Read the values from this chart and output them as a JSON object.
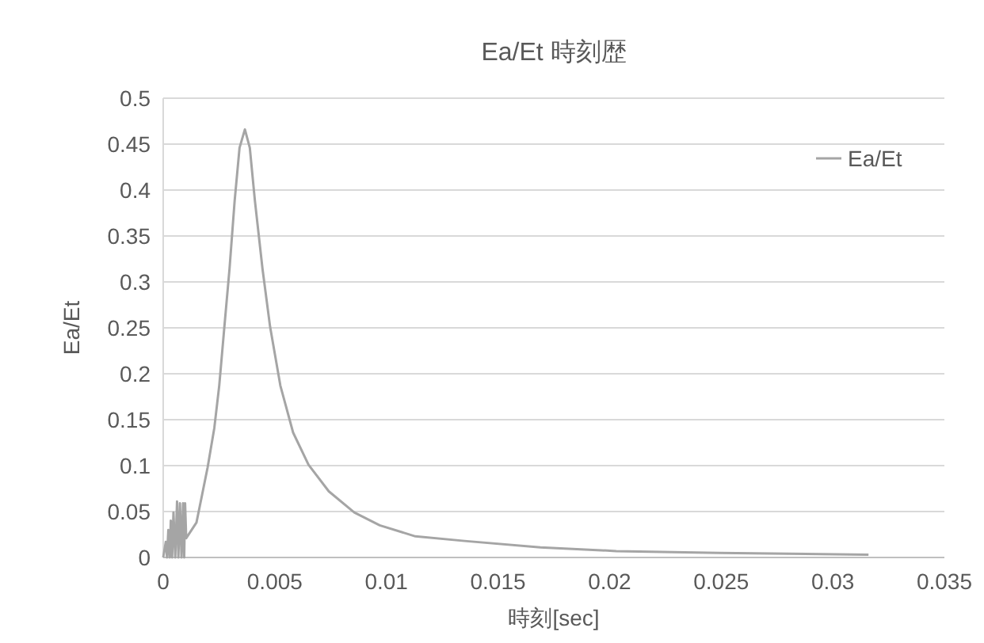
{
  "chart_data": {
    "type": "line",
    "title": "Ea/Et  時刻歴",
    "xlabel": "時刻[sec]",
    "ylabel": "Ea/Et",
    "x": [
      0,
      0.000116,
      0.00017,
      0.00023,
      0.00029,
      0.00034,
      0.0004,
      0.00046,
      0.00054,
      0.00062,
      0.00068,
      0.00075,
      0.00082,
      0.00089,
      0.00094,
      0.00098,
      0.00103,
      0.00149,
      0.00199,
      0.00229,
      0.00251,
      0.00274,
      0.00297,
      0.0032,
      0.00342,
      0.00366,
      0.00388,
      0.00411,
      0.00445,
      0.00479,
      0.00525,
      0.00582,
      0.00651,
      0.00742,
      0.00856,
      0.0097,
      0.0113,
      0.0135,
      0.0169,
      0.0203,
      0.0249,
      0.0316
    ],
    "series": [
      {
        "name": "Ea/Et",
        "color": "#a5a5a5",
        "values": [
          0,
          0.017,
          0,
          0.03,
          0,
          0.04,
          0,
          0.049,
          0,
          0.061,
          0,
          0.059,
          0,
          0.059,
          0,
          0.059,
          0.021,
          0.038,
          0.098,
          0.141,
          0.187,
          0.251,
          0.314,
          0.388,
          0.446,
          0.466,
          0.446,
          0.388,
          0.314,
          0.251,
          0.187,
          0.136,
          0.101,
          0.072,
          0.049,
          0.035,
          0.023,
          0.018,
          0.011,
          0.007,
          0.005,
          0.003
        ]
      }
    ],
    "xlim": [
      0,
      0.035
    ],
    "xticks": [
      0,
      0.005,
      0.01,
      0.015,
      0.02,
      0.025,
      0.03,
      0.035
    ],
    "ylim": [
      0,
      0.5
    ],
    "yticks": [
      0,
      0.05,
      0.1,
      0.15,
      0.2,
      0.25,
      0.3,
      0.35,
      0.4,
      0.45,
      0.5
    ],
    "grid": "y",
    "legend": "top right",
    "marker": "none"
  }
}
